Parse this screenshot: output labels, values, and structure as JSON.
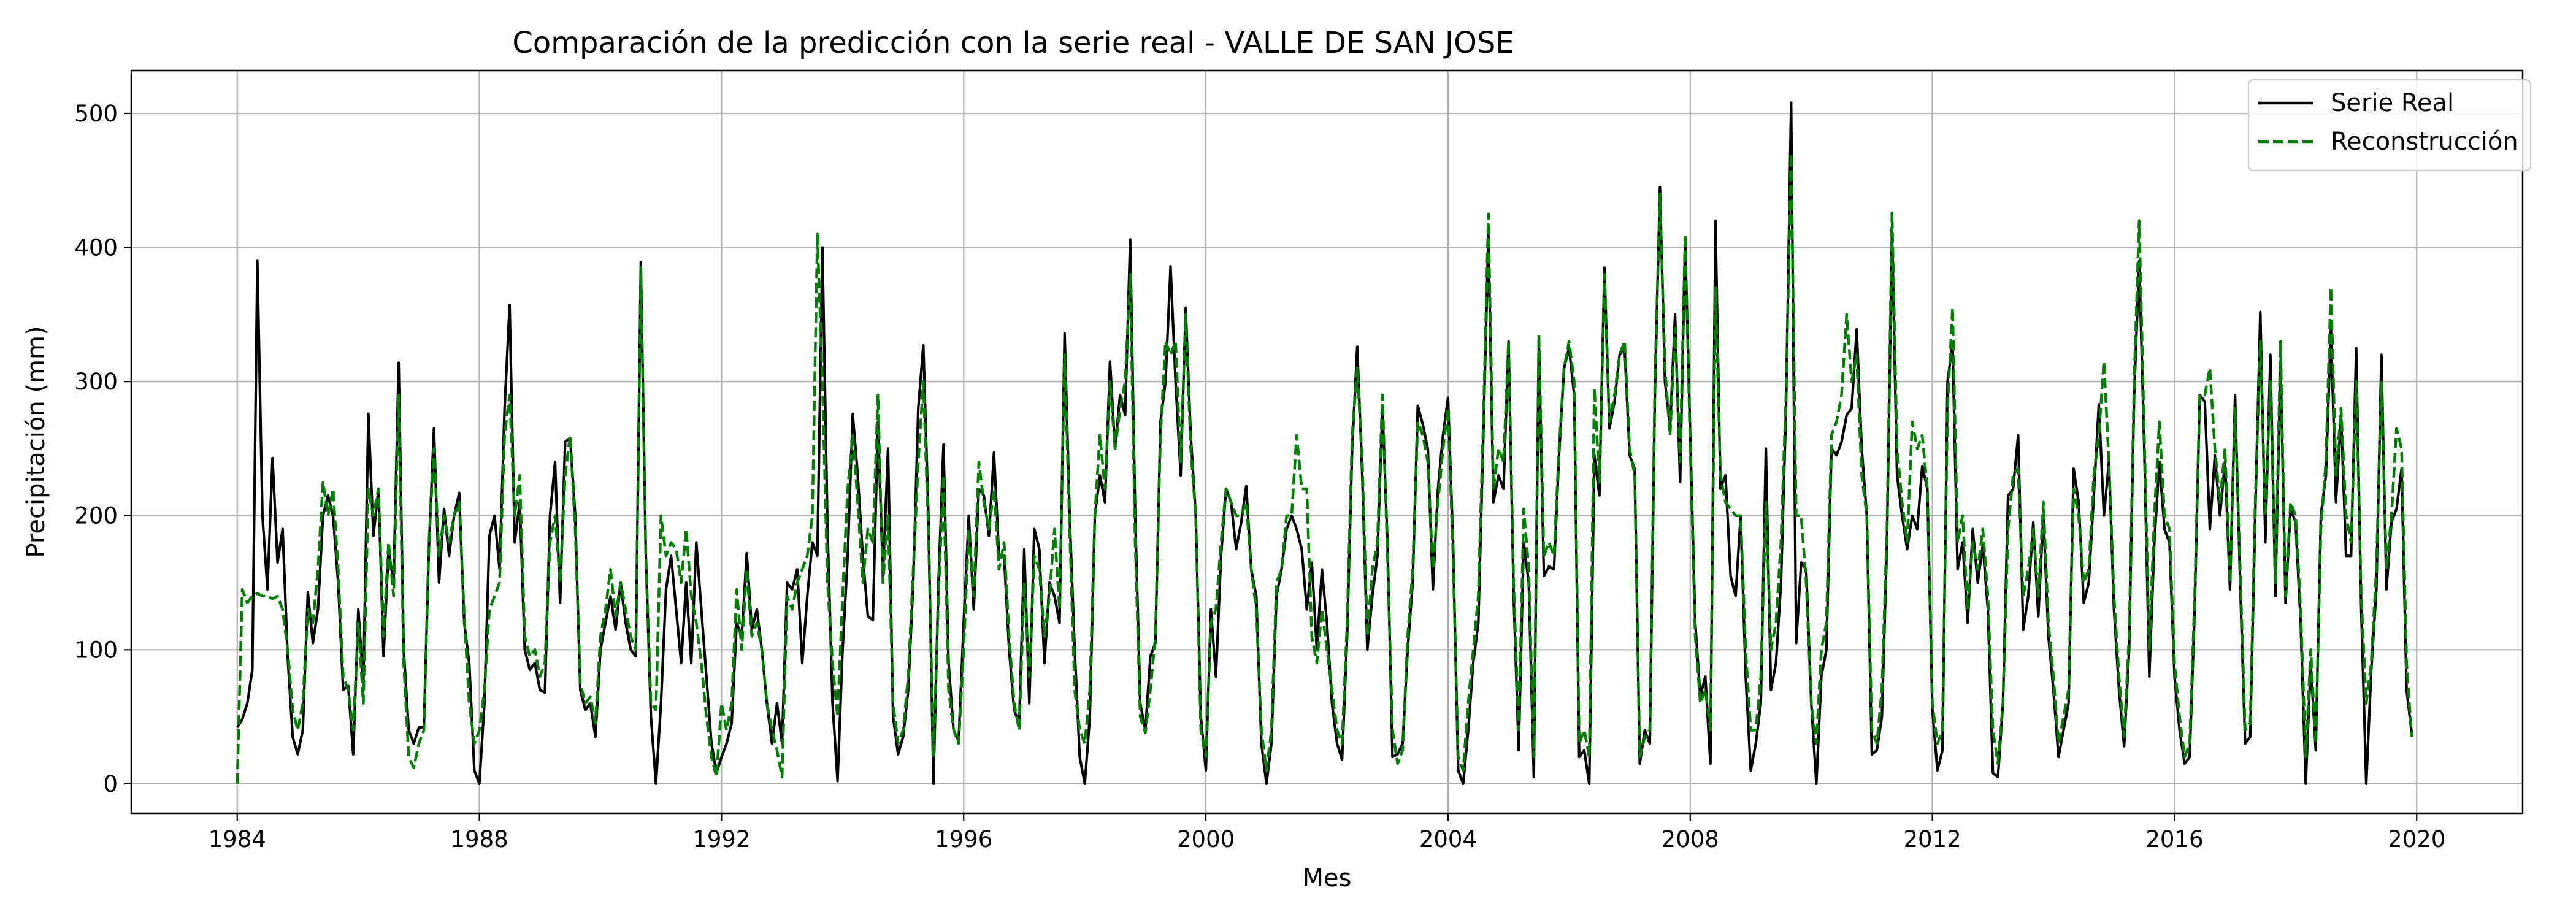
{
  "chart_data": {
    "type": "line",
    "title": "Comparación de la predicción con la serie real - VALLE DE SAN JOSE",
    "xlabel": "Mes",
    "ylabel": "Precipitación (mm)",
    "x_start": "1984-01",
    "x_end": "2019-12",
    "x_ticks": [
      "1984",
      "1988",
      "1992",
      "1996",
      "2000",
      "2004",
      "2008",
      "2012",
      "2016",
      "2020"
    ],
    "y_ticks": [
      "0",
      "100",
      "200",
      "300",
      "400",
      "500"
    ],
    "xlim": [
      "1982-04",
      "2021-10"
    ],
    "ylim": [
      -22,
      532
    ],
    "grid": true,
    "legend_position": "top-right",
    "series": [
      {
        "name": "Serie Real",
        "color": "#000000",
        "style": "solid",
        "values": [
          42,
          48,
          60,
          85,
          390,
          200,
          145,
          243,
          165,
          190,
          95,
          35,
          22,
          40,
          143,
          105,
          130,
          200,
          215,
          200,
          150,
          70,
          73,
          22,
          130,
          75,
          276,
          185,
          220,
          95,
          175,
          150,
          314,
          100,
          40,
          30,
          42,
          42,
          175,
          265,
          150,
          205,
          170,
          200,
          217,
          120,
          90,
          10,
          0,
          60,
          185,
          200,
          160,
          280,
          357,
          180,
          210,
          100,
          85,
          90,
          70,
          68,
          200,
          240,
          135,
          255,
          258,
          200,
          70,
          55,
          60,
          35,
          100,
          120,
          140,
          115,
          150,
          120,
          100,
          95,
          389,
          170,
          50,
          0,
          60,
          145,
          170,
          130,
          90,
          150,
          90,
          180,
          130,
          80,
          30,
          8,
          20,
          30,
          45,
          120,
          110,
          172,
          115,
          130,
          100,
          60,
          30,
          60,
          30,
          150,
          145,
          160,
          90,
          140,
          180,
          170,
          400,
          190,
          60,
          2,
          100,
          170,
          276,
          230,
          170,
          125,
          122,
          270,
          155,
          250,
          50,
          22,
          35,
          70,
          150,
          280,
          327,
          200,
          0,
          150,
          253,
          90,
          40,
          32,
          120,
          200,
          130,
          220,
          215,
          185,
          247,
          170,
          170,
          100,
          55,
          45,
          175,
          60,
          190,
          175,
          90,
          150,
          140,
          120,
          336,
          200,
          100,
          20,
          0,
          50,
          200,
          230,
          210,
          315,
          250,
          290,
          275,
          406,
          200,
          60,
          40,
          95,
          105,
          270,
          300,
          386,
          300,
          230,
          355,
          260,
          200,
          50,
          10,
          130,
          80,
          170,
          220,
          210,
          175,
          195,
          222,
          160,
          140,
          30,
          0,
          30,
          140,
          160,
          190,
          200,
          190,
          175,
          130,
          165,
          100,
          160,
          120,
          60,
          30,
          18,
          110,
          250,
          326,
          230,
          100,
          140,
          170,
          280,
          180,
          20,
          22,
          30,
          100,
          150,
          282,
          268,
          250,
          145,
          220,
          260,
          288,
          180,
          10,
          0,
          40,
          90,
          120,
          260,
          410,
          210,
          230,
          220,
          330,
          140,
          25,
          180,
          150,
          5,
          330,
          155,
          162,
          160,
          245,
          310,
          325,
          290,
          20,
          25,
          0,
          245,
          215,
          385,
          265,
          285,
          320,
          325,
          245,
          235,
          15,
          40,
          30,
          290,
          445,
          300,
          265,
          350,
          225,
          405,
          260,
          120,
          65,
          80,
          15,
          420,
          220,
          230,
          155,
          140,
          200,
          80,
          10,
          30,
          60,
          250,
          70,
          90,
          150,
          280,
          508,
          105,
          165,
          160,
          60,
          0,
          80,
          100,
          250,
          245,
          255,
          275,
          280,
          339,
          250,
          200,
          22,
          25,
          50,
          180,
          412,
          230,
          200,
          175,
          200,
          190,
          237,
          220,
          55,
          10,
          25,
          300,
          328,
          160,
          180,
          120,
          190,
          150,
          178,
          130,
          8,
          5,
          60,
          215,
          220,
          260,
          115,
          140,
          195,
          125,
          200,
          110,
          70,
          20,
          40,
          60,
          235,
          210,
          135,
          150,
          215,
          283,
          200,
          240,
          130,
          70,
          28,
          100,
          290,
          390,
          250,
          80,
          180,
          240,
          190,
          180,
          80,
          40,
          15,
          20,
          130,
          290,
          285,
          190,
          245,
          200,
          240,
          145,
          290,
          150,
          30,
          35,
          200,
          352,
          180,
          320,
          140,
          315,
          135,
          205,
          195,
          120,
          0,
          90,
          25,
          200,
          230,
          340,
          210,
          275,
          170,
          170,
          325,
          130,
          0,
          85,
          145,
          320,
          145,
          195,
          205,
          235,
          70,
          38
        ]
      },
      {
        "name": "Reconstrucción",
        "color": "#008000",
        "style": "dashed",
        "values": [
          0,
          145,
          135,
          140,
          142,
          140,
          140,
          138,
          140,
          130,
          100,
          55,
          40,
          60,
          130,
          120,
          160,
          225,
          200,
          220,
          160,
          80,
          70,
          40,
          120,
          60,
          220,
          200,
          220,
          110,
          180,
          140,
          290,
          90,
          20,
          12,
          30,
          40,
          180,
          250,
          170,
          200,
          180,
          200,
          210,
          125,
          60,
          30,
          40,
          70,
          130,
          140,
          150,
          260,
          290,
          200,
          230,
          110,
          95,
          100,
          80,
          90,
          180,
          200,
          150,
          230,
          260,
          190,
          75,
          60,
          65,
          45,
          110,
          130,
          160,
          125,
          150,
          130,
          110,
          100,
          385,
          170,
          60,
          55,
          200,
          170,
          180,
          175,
          150,
          190,
          140,
          120,
          90,
          50,
          20,
          5,
          60,
          40,
          60,
          145,
          100,
          160,
          110,
          120,
          100,
          60,
          40,
          25,
          5,
          140,
          130,
          150,
          160,
          170,
          200,
          410,
          300,
          150,
          90,
          50,
          140,
          220,
          260,
          210,
          150,
          190,
          180,
          290,
          150,
          200,
          60,
          30,
          40,
          80,
          160,
          240,
          300,
          190,
          20,
          140,
          230,
          70,
          40,
          30,
          100,
          190,
          140,
          240,
          210,
          190,
          220,
          160,
          180,
          110,
          60,
          40,
          150,
          80,
          170,
          160,
          110,
          140,
          190,
          130,
          320,
          190,
          70,
          40,
          30,
          70,
          200,
          260,
          220,
          300,
          250,
          280,
          300,
          380,
          180,
          50,
          38,
          70,
          110,
          260,
          330,
          320,
          330,
          240,
          350,
          250,
          200,
          40,
          20,
          120,
          130,
          180,
          220,
          210,
          200,
          200,
          210,
          160,
          130,
          40,
          10,
          40,
          150,
          160,
          200,
          200,
          260,
          220,
          220,
          110,
          90,
          130,
          100,
          70,
          40,
          30,
          120,
          260,
          310,
          240,
          110,
          160,
          180,
          290,
          170,
          40,
          15,
          25,
          110,
          160,
          270,
          260,
          240,
          160,
          210,
          250,
          280,
          170,
          20,
          10,
          60,
          100,
          140,
          270,
          425,
          220,
          250,
          240,
          330,
          150,
          40,
          205,
          160,
          20,
          335,
          170,
          180,
          170,
          250,
          310,
          330,
          300,
          30,
          40,
          20,
          295,
          225,
          380,
          270,
          290,
          320,
          330,
          250,
          230,
          20,
          35,
          40,
          300,
          440,
          310,
          260,
          340,
          240,
          410,
          250,
          110,
          60,
          70,
          40,
          370,
          230,
          210,
          205,
          200,
          200,
          100,
          40,
          40,
          80,
          210,
          100,
          120,
          180,
          290,
          470,
          200,
          200,
          150,
          60,
          30,
          100,
          120,
          260,
          270,
          290,
          350,
          300,
          320,
          230,
          200,
          40,
          30,
          70,
          190,
          426,
          250,
          210,
          180,
          270,
          250,
          260,
          220,
          60,
          30,
          40,
          280,
          355,
          180,
          200,
          130,
          180,
          160,
          190,
          140,
          40,
          15,
          60,
          190,
          230,
          235,
          140,
          160,
          190,
          140,
          210,
          120,
          80,
          30,
          50,
          70,
          220,
          200,
          150,
          160,
          230,
          260,
          315,
          240,
          140,
          80,
          35,
          110,
          300,
          420,
          260,
          100,
          200,
          270,
          200,
          190,
          90,
          50,
          20,
          30,
          140,
          290,
          290,
          310,
          250,
          210,
          250,
          150,
          280,
          160,
          40,
          45,
          210,
          330,
          200,
          300,
          150,
          330,
          140,
          210,
          200,
          130,
          20,
          100,
          30,
          190,
          240,
          370,
          230,
          280,
          200,
          180,
          300,
          140,
          60,
          90,
          160,
          300,
          160,
          200,
          265,
          250,
          90,
          35
        ]
      }
    ]
  }
}
